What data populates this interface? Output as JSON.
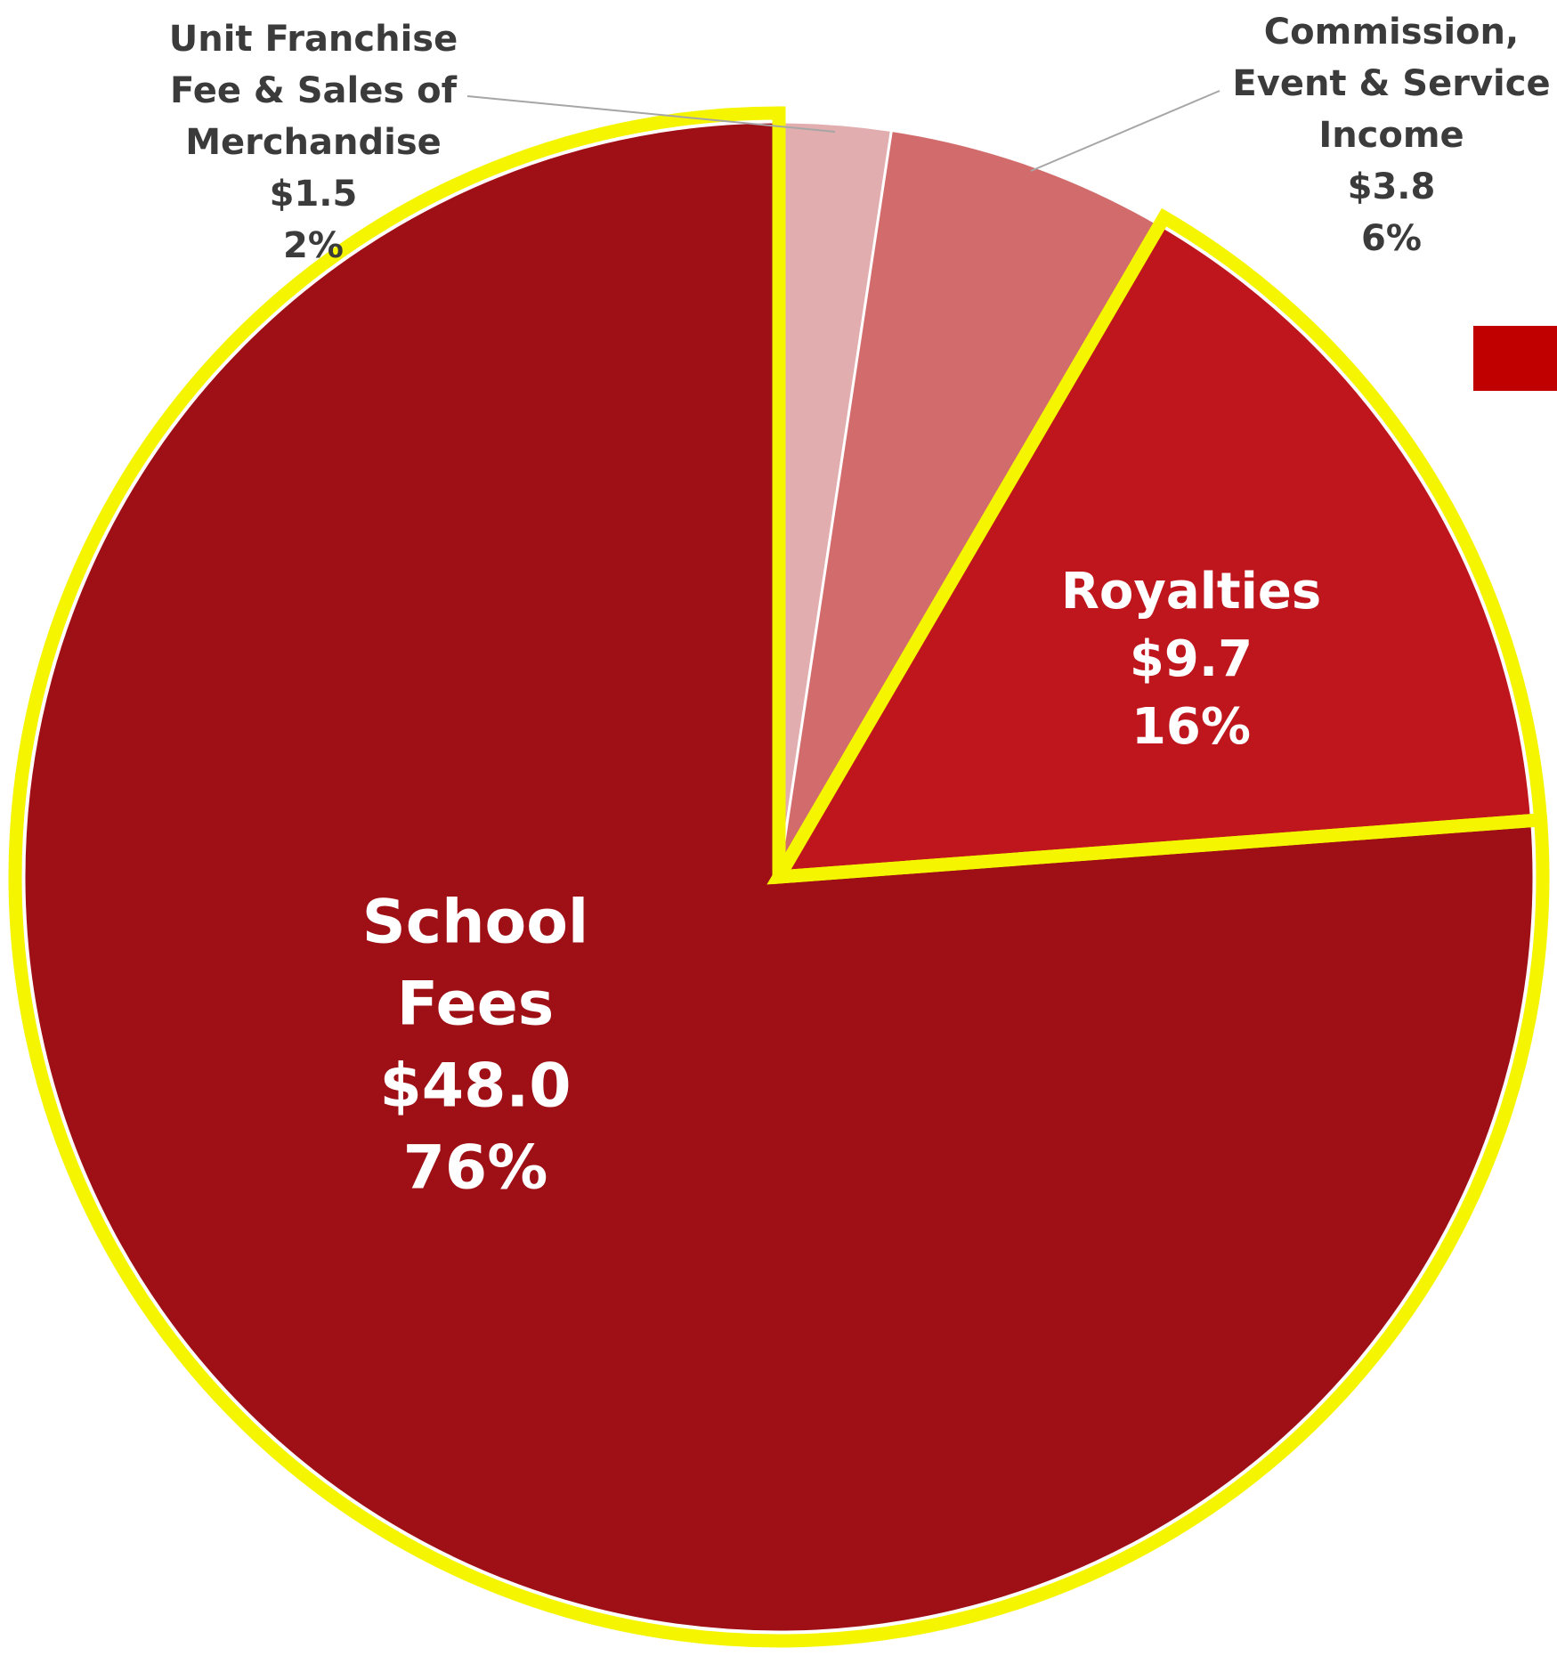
{
  "chart_data": {
    "type": "pie",
    "slices": [
      {
        "name": "Unit Franchise Fee & Sales of Merchandise",
        "label_lines": [
          "Unit Franchise",
          "Fee & Sales of",
          "Merchandise"
        ],
        "value": 1.5,
        "value_label": "$1.5",
        "percent_label": "2%",
        "color": "#e1adae",
        "highlighted": false
      },
      {
        "name": "Commission, Event & Service Income",
        "label_lines": [
          "Commission,",
          "Event & Service",
          "Income"
        ],
        "value": 3.8,
        "value_label": "$3.8",
        "percent_label": "6%",
        "color": "#d26b6c",
        "highlighted": false
      },
      {
        "name": "Royalties",
        "label_lines": [
          "Royalties"
        ],
        "value": 9.7,
        "value_label": "$9.7",
        "percent_label": "16%",
        "color": "#bf151c",
        "highlighted": true
      },
      {
        "name": "School Fees",
        "label_lines": [
          "School",
          "Fees"
        ],
        "value": 48.0,
        "value_label": "$48.0",
        "percent_label": "76%",
        "color": "#9f1016",
        "highlighted": true
      }
    ],
    "start": "12 o'clock",
    "direction": "clockwise",
    "highlight_color": "#f5f500",
    "legend_swatch_color": "#c00000"
  }
}
